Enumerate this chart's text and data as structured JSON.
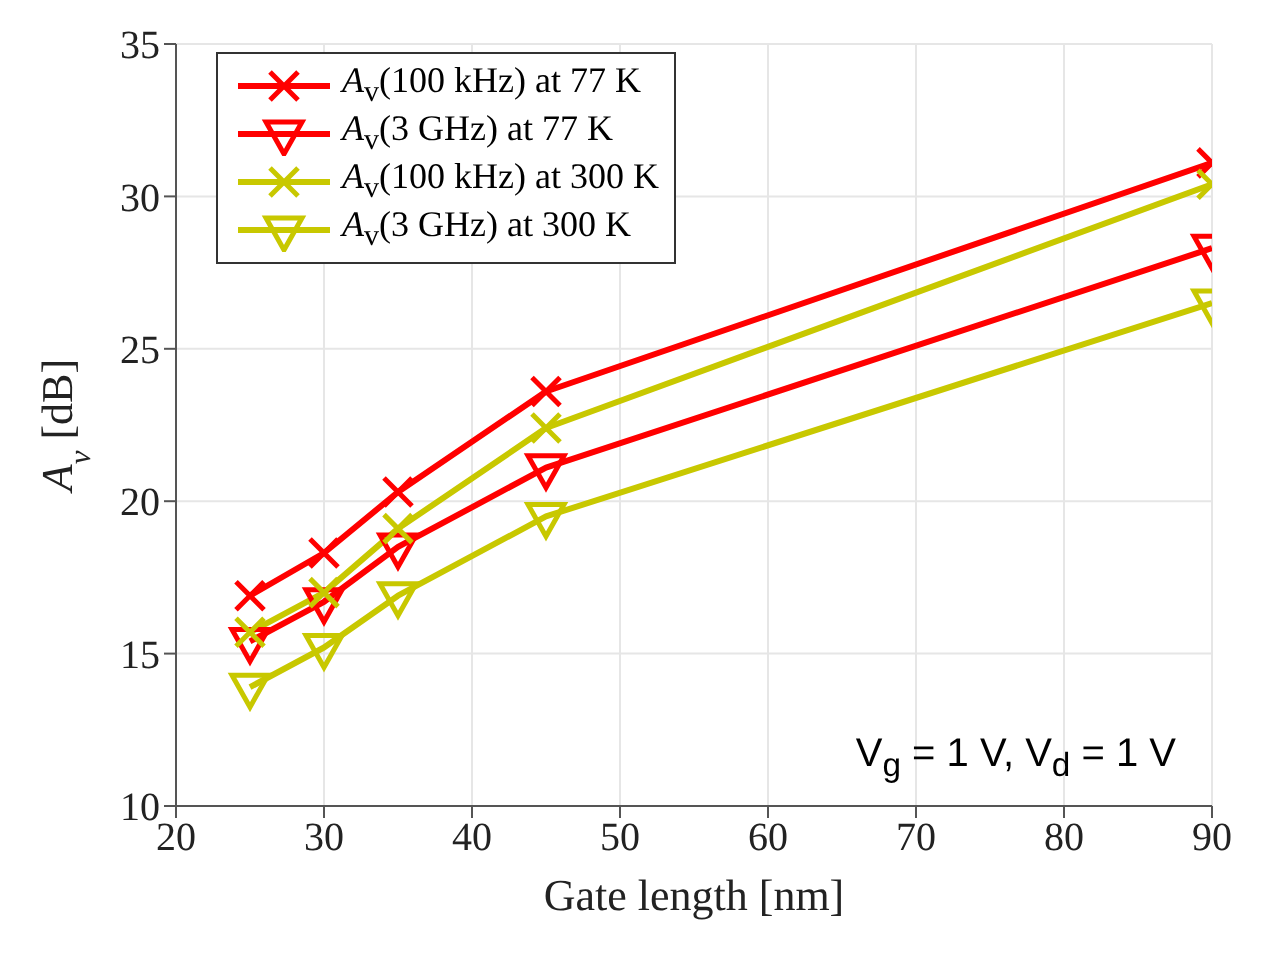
{
  "chart_data": {
    "type": "line",
    "xlabel": "Gate length [nm]",
    "ylabel": "A$_{v}$ [dB]",
    "x": [
      25,
      30,
      35,
      45,
      90
    ],
    "series": [
      {
        "name": "A$_{v}$(100 kHz) at 77 K",
        "color": "#ff0000",
        "marker": "cross",
        "values": [
          16.9,
          18.3,
          20.3,
          23.6,
          31.1
        ]
      },
      {
        "name": "A$_{v}$(3 GHz) at 77 K",
        "color": "#ff0000",
        "marker": "triangle",
        "values": [
          15.4,
          16.7,
          18.5,
          21.1,
          28.3
        ]
      },
      {
        "name": "A$_{v}$(100 kHz) at 300 K",
        "color": "#c8c800",
        "marker": "cross",
        "values": [
          15.7,
          17.0,
          19.1,
          22.4,
          30.4
        ]
      },
      {
        "name": "A$_{v}$(3 GHz) at 300 K",
        "color": "#c8c800",
        "marker": "triangle",
        "values": [
          13.9,
          15.2,
          16.9,
          19.5,
          26.5
        ]
      }
    ],
    "xlim": [
      20,
      90
    ],
    "xticks": [
      20,
      30,
      40,
      50,
      60,
      70,
      80,
      90
    ],
    "ylim": [
      10,
      35
    ],
    "yticks": [
      10,
      15,
      20,
      25,
      30,
      35
    ],
    "grid": true,
    "legend": "top left",
    "line_style": "solid",
    "annotations": [
      "V$_{g}$ = 1 V, V$_{d}$ = 1 V"
    ]
  }
}
